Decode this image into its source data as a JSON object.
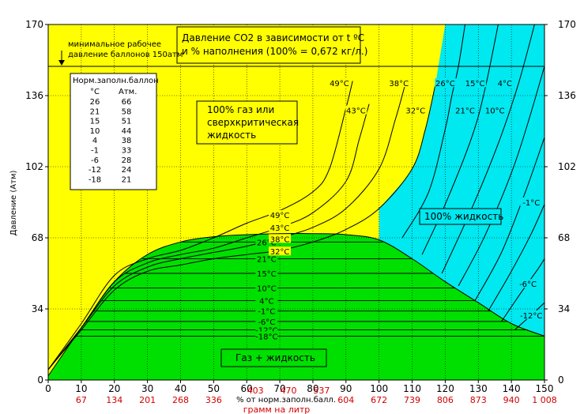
{
  "chart_data": {
    "type": "line",
    "title": "Давление CO2 в зависимости от t ºC",
    "subtitle": "и % наполнения (100% = 0,672 кг/л.)",
    "ylabel": "Давление (Атм)",
    "xlabel": "% от норм.заполн.балл.",
    "xlabel2": "грамм на литр",
    "xlim": [
      0,
      150
    ],
    "ylim": [
      0,
      170
    ],
    "x_ticks": [
      "0",
      "10",
      "20",
      "30",
      "40",
      "50",
      "60",
      "70",
      "80",
      "90",
      "100",
      "110",
      "120",
      "130",
      "140",
      "150"
    ],
    "y_ticks": [
      "0",
      "34",
      "68",
      "102",
      "136",
      "170"
    ],
    "gram_ticks": [
      {
        "x": 10,
        "label": "67"
      },
      {
        "x": 20,
        "label": "134"
      },
      {
        "x": 30,
        "label": "201"
      },
      {
        "x": 40,
        "label": "268"
      },
      {
        "x": 50,
        "label": "336"
      },
      {
        "x": 60,
        "label": "403"
      },
      {
        "x": 70,
        "label": "470"
      },
      {
        "x": 80,
        "label": "537"
      },
      {
        "x": 90,
        "label": "604"
      },
      {
        "x": 100,
        "label": "672"
      },
      {
        "x": 110,
        "label": "739"
      },
      {
        "x": 120,
        "label": "806"
      },
      {
        "x": 130,
        "label": "873"
      },
      {
        "x": 140,
        "label": "940"
      },
      {
        "x": 150,
        "label": "1 008"
      }
    ],
    "min_pressure": {
      "value": 150,
      "label_line1": "минимальное рабочее",
      "label_line2": "давление баллонов 150атм"
    },
    "two_phase_isotherms": [
      {
        "label": "26°C",
        "p": 66
      },
      {
        "label": "21°C",
        "p": 58
      },
      {
        "label": "15°C",
        "p": 51
      },
      {
        "label": "10°C",
        "p": 44
      },
      {
        "label": "4°C",
        "p": 38
      },
      {
        "label": "-1°C",
        "p": 33
      },
      {
        "label": "-6°C",
        "p": 28
      },
      {
        "label": "-12°C",
        "p": 24
      },
      {
        "label": "-18°C",
        "p": 21
      }
    ],
    "supercritical_isotherms": [
      {
        "label": "49°C",
        "points": [
          [
            0,
            5
          ],
          [
            10,
            27
          ],
          [
            20,
            50
          ],
          [
            30,
            58
          ],
          [
            40,
            62
          ],
          [
            50,
            68
          ],
          [
            60,
            75
          ],
          [
            70,
            81
          ],
          [
            80,
            90
          ],
          [
            85,
            101
          ],
          [
            90,
            130
          ],
          [
            92,
            143
          ]
        ]
      },
      {
        "label": "43°C",
        "points": [
          [
            0,
            5
          ],
          [
            10,
            25
          ],
          [
            20,
            47
          ],
          [
            30,
            56
          ],
          [
            40,
            60
          ],
          [
            50,
            63
          ],
          [
            60,
            68
          ],
          [
            70,
            73
          ],
          [
            80,
            80
          ],
          [
            90,
            95
          ],
          [
            94,
            115
          ],
          [
            97,
            132
          ]
        ]
      },
      {
        "label": "38°C",
        "points": [
          [
            0,
            5
          ],
          [
            10,
            25
          ],
          [
            20,
            45
          ],
          [
            30,
            54
          ],
          [
            40,
            58
          ],
          [
            50,
            61
          ],
          [
            60,
            64
          ],
          [
            70,
            68
          ],
          [
            80,
            73
          ],
          [
            90,
            82
          ],
          [
            100,
            101
          ],
          [
            105,
            125
          ],
          [
            108,
            142
          ]
        ]
      },
      {
        "label": "32°C",
        "points": [
          [
            0,
            5
          ],
          [
            10,
            24
          ],
          [
            20,
            43
          ],
          [
            30,
            52
          ],
          [
            40,
            55
          ],
          [
            50,
            58
          ],
          [
            60,
            60
          ],
          [
            70,
            62
          ],
          [
            80,
            66
          ],
          [
            90,
            72
          ],
          [
            100,
            82
          ],
          [
            110,
            101
          ],
          [
            114,
            120
          ],
          [
            117,
            141
          ]
        ]
      }
    ],
    "liquid_isotherms": [
      {
        "label": "26°C",
        "points": [
          [
            107,
            68
          ],
          [
            115,
            90
          ],
          [
            120,
            120
          ],
          [
            122,
            136
          ],
          [
            124,
            150
          ],
          [
            126,
            170
          ]
        ]
      },
      {
        "label": "21°C",
        "points": [
          [
            113,
            60
          ],
          [
            120,
            84
          ],
          [
            128,
            116
          ],
          [
            132,
            139
          ],
          [
            136,
            170
          ]
        ]
      },
      {
        "label": "15°C",
        "points": [
          [
            119,
            51
          ],
          [
            128,
            82
          ],
          [
            136,
            113
          ],
          [
            142,
            141
          ],
          [
            147,
            170
          ]
        ]
      },
      {
        "label": "10°C",
        "points": [
          [
            124,
            45
          ],
          [
            132,
            69
          ],
          [
            140,
            99
          ],
          [
            145,
            123
          ],
          [
            150,
            150
          ]
        ]
      },
      {
        "label": "4°C",
        "points": [
          [
            129,
            38
          ],
          [
            137,
            61
          ],
          [
            144,
            89
          ],
          [
            150,
            116
          ]
        ]
      },
      {
        "label": "-1°C",
        "points": [
          [
            133,
            33
          ],
          [
            140,
            52
          ],
          [
            146,
            70
          ],
          [
            150,
            84
          ]
        ]
      },
      {
        "label": "-6°C",
        "points": [
          [
            137,
            28
          ],
          [
            143,
            42
          ],
          [
            148,
            53
          ],
          [
            150,
            58
          ]
        ]
      },
      {
        "label": "-12°C",
        "points": [
          [
            141,
            24
          ],
          [
            146,
            31
          ],
          [
            150,
            37
          ]
        ]
      }
    ],
    "top_labels": [
      "49°C",
      "38°C",
      "26°C",
      "15°C",
      "4°C",
      "43°C",
      "32°C",
      "21°C",
      "10°C"
    ],
    "right_labels": [
      "-1°C",
      "-6°C",
      "-12°C"
    ],
    "saturation_dome": [
      [
        0,
        2
      ],
      [
        10,
        25
      ],
      [
        20,
        47
      ],
      [
        30,
        60
      ],
      [
        40,
        66
      ],
      [
        50,
        68.5
      ],
      [
        60,
        69.5
      ],
      [
        70,
        70
      ],
      [
        80,
        70
      ],
      [
        90,
        69.5
      ],
      [
        100,
        67
      ],
      [
        110,
        58
      ],
      [
        120,
        47
      ],
      [
        130,
        37
      ],
      [
        140,
        27
      ],
      [
        150,
        21
      ]
    ],
    "region_labels": {
      "gas": [
        "100% газ или",
        "сверхкритическая",
        "жидкость"
      ],
      "liquid": "100% жидкость",
      "two_phase": "Газ + жидкость"
    },
    "inset_table": {
      "title": "Норм.заполн.баллон",
      "col1_header": "°C",
      "col2_header": "Атм.",
      "rows": [
        [
          "26",
          "66"
        ],
        [
          "21",
          "58"
        ],
        [
          "15",
          "51"
        ],
        [
          "10",
          "44"
        ],
        [
          "4",
          "38"
        ],
        [
          "-1",
          "33"
        ],
        [
          "-6",
          "28"
        ],
        [
          "-12",
          "24"
        ],
        [
          "-18",
          "21"
        ]
      ]
    },
    "colors": {
      "gas": "#ffff00",
      "two_phase": "#00e000",
      "liquid": "#00e8f0",
      "grid": "#000000",
      "gram_ticks": "#d40000"
    }
  }
}
